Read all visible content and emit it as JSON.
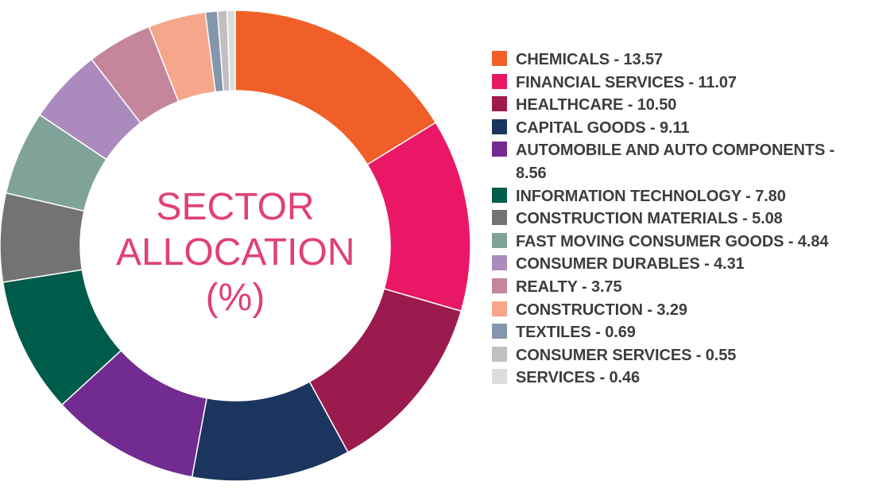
{
  "chart_data": {
    "type": "pie",
    "title": "SECTOR ALLOCATION (%)",
    "title_lines": [
      "SECTOR",
      "ALLOCATION",
      "(%)"
    ],
    "categories": [
      "CHEMICALS",
      "FINANCIAL SERVICES",
      "HEALTHCARE",
      "CAPITAL GOODS",
      "AUTOMOBILE AND AUTO COMPONENTS",
      "INFORMATION TECHNOLOGY",
      "CONSTRUCTION MATERIALS",
      "FAST MOVING CONSUMER GOODS",
      "CONSUMER DURABLES",
      "REALTY",
      "CONSTRUCTION",
      "TEXTILES",
      "CONSUMER SERVICES",
      "SERVICES"
    ],
    "values": [
      13.57,
      11.07,
      10.5,
      9.11,
      8.56,
      7.8,
      5.08,
      4.84,
      4.31,
      3.75,
      3.29,
      0.69,
      0.55,
      0.46
    ],
    "colors": [
      "#f05f28",
      "#ea1766",
      "#9b1b4e",
      "#1b355e",
      "#722b91",
      "#005c4a",
      "#737373",
      "#7fa399",
      "#ab8bbd",
      "#c5859c",
      "#f6a68a",
      "#8396ac",
      "#c0c0c0",
      "#dcdcdc"
    ],
    "legend": [
      "CHEMICALS - 13.57",
      "FINANCIAL SERVICES - 11.07",
      "HEALTHCARE - 10.50",
      "CAPITAL GOODS - 9.11",
      "AUTOMOBILE AND AUTO COMPONENTS - 8.56",
      "INFORMATION TECHNOLOGY - 7.80",
      "CONSTRUCTION MATERIALS - 5.08",
      "FAST MOVING CONSUMER GOODS - 4.84",
      "CONSUMER DURABLES - 4.31",
      "REALTY - 3.75",
      "CONSTRUCTION - 3.29",
      "TEXTILES - 0.69",
      "CONSUMER SERVICES - 0.55",
      "SERVICES - 0.46"
    ],
    "legend_placement": "right",
    "donut": true
  },
  "theme": {
    "title_color": "#e0407a",
    "legend_text_color": "#3d3d3d"
  }
}
